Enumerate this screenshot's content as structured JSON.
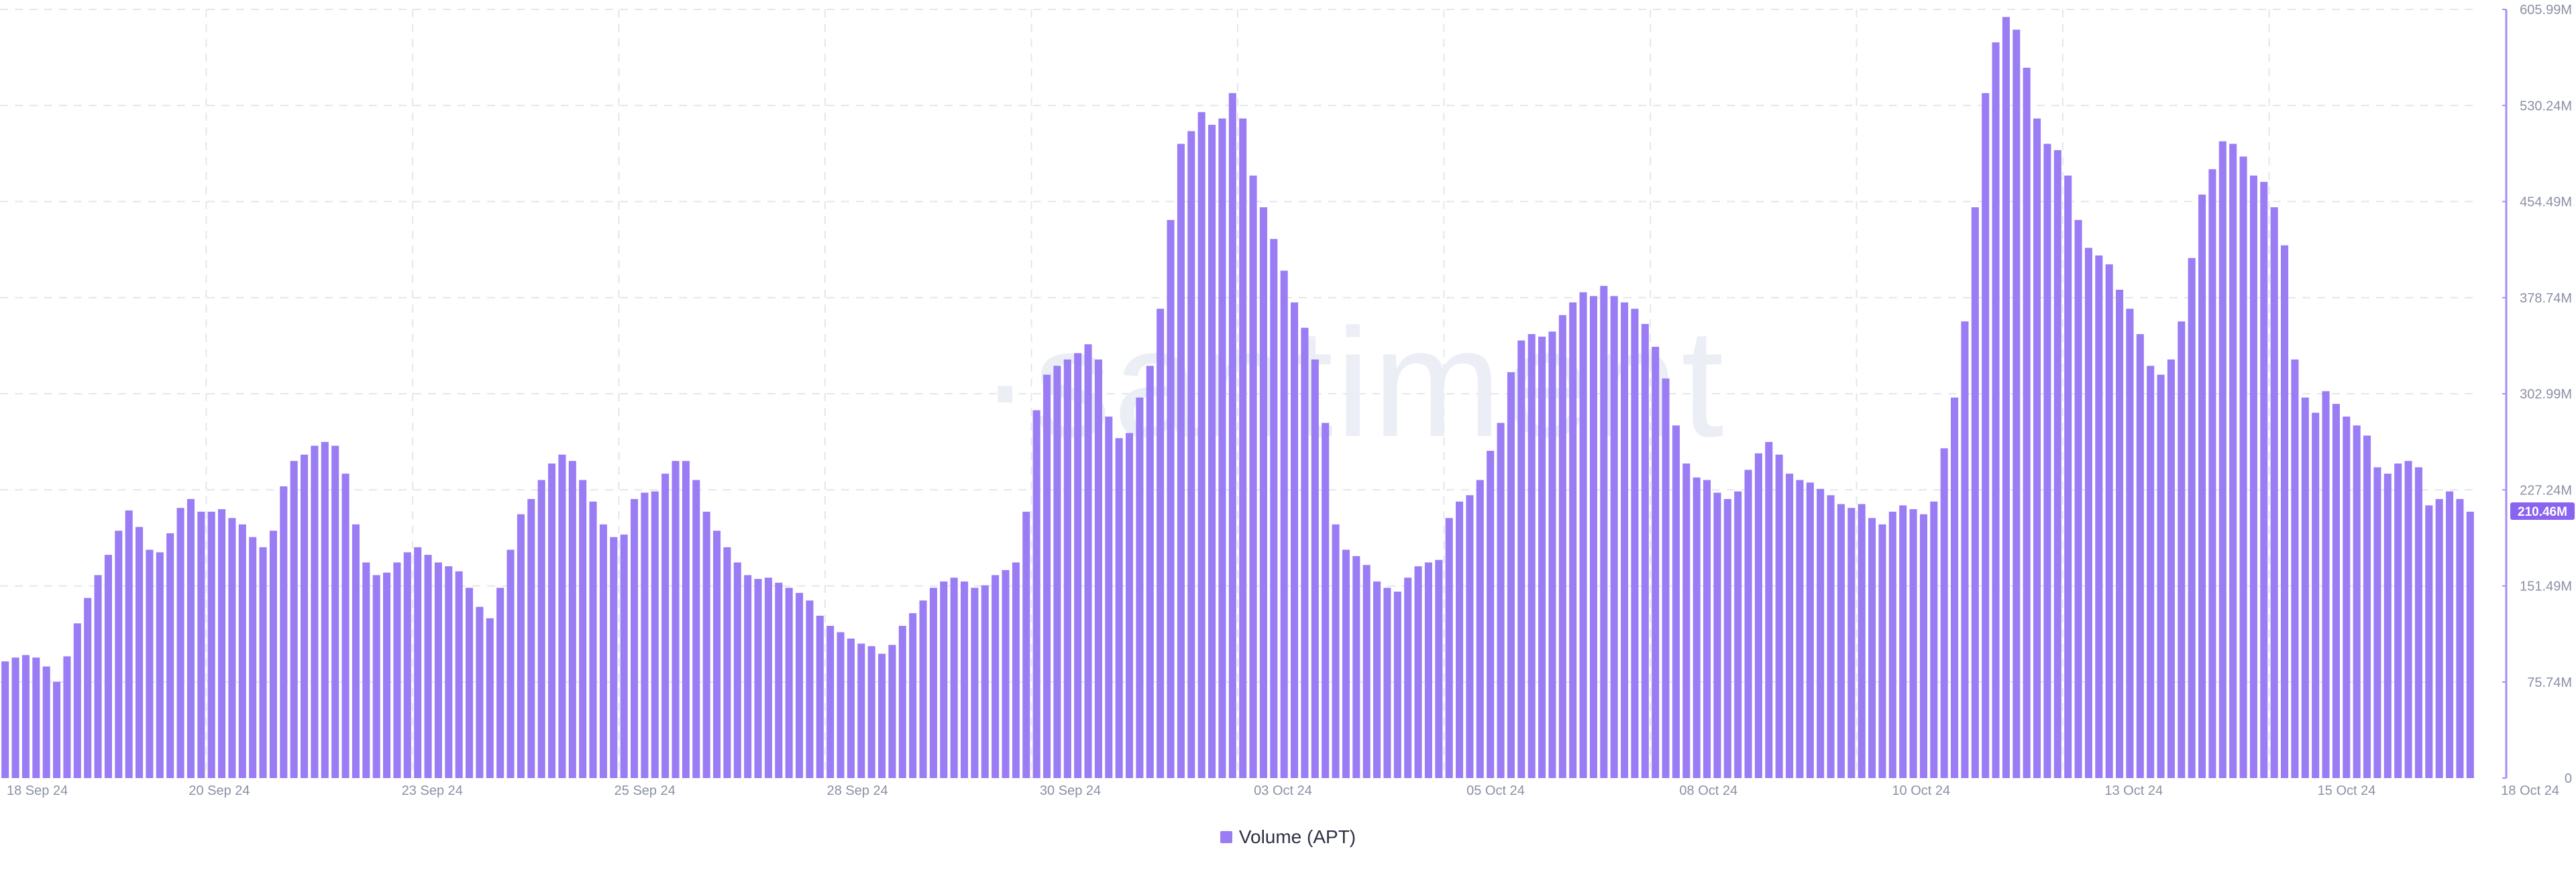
{
  "watermark": "·santiment",
  "legend": {
    "label": "Volume (APT)",
    "color": "#9a7cf4"
  },
  "colors": {
    "bar": "#9a7cf4",
    "bar_edge": "#8766ee",
    "axis": "#a88cf5",
    "grid": "#e4e6ee",
    "badge": "#8a63f0"
  },
  "chart_data": {
    "type": "bar",
    "series": [
      {
        "name": "Volume (APT)",
        "x_range": [
          "2024-09-18",
          "2024-10-18"
        ],
        "values": [
          92000000.0,
          95000000.0,
          97000000.0,
          95000000.0,
          88000000.0,
          76000000.0,
          96000000.0,
          122000000.0,
          142000000.0,
          160000000.0,
          176000000.0,
          195000000.0,
          211000000.0,
          198000000.0,
          180000000.0,
          178000000.0,
          193000000.0,
          213000000.0,
          220000000.0,
          210000000.0,
          210000000.0,
          212000000.0,
          205000000.0,
          200000000.0,
          190000000.0,
          182000000.0,
          195000000.0,
          230000000.0,
          250000000.0,
          255000000.0,
          262000000.0,
          265000000.0,
          262000000.0,
          240000000.0,
          200000000.0,
          170000000.0,
          160000000.0,
          162000000.0,
          170000000.0,
          178000000.0,
          182000000.0,
          176000000.0,
          170000000.0,
          167000000.0,
          163000000.0,
          150000000.0,
          135000000.0,
          126000000.0,
          150000000.0,
          180000000.0,
          208000000.0,
          220000000.0,
          235000000.0,
          248000000.0,
          255000000.0,
          250000000.0,
          235000000.0,
          218000000.0,
          200000000.0,
          190000000.0,
          192000000.0,
          220000000.0,
          225000000.0,
          226000000.0,
          240000000.0,
          250000000.0,
          250000000.0,
          235000000.0,
          210000000.0,
          195000000.0,
          182000000.0,
          170000000.0,
          160000000.0,
          157000000.0,
          158000000.0,
          154000000.0,
          150000000.0,
          146000000.0,
          140000000.0,
          128000000.0,
          120000000.0,
          115000000.0,
          110000000.0,
          106000000.0,
          104000000.0,
          98000000.0,
          105000000.0,
          120000000.0,
          130000000.0,
          140000000.0,
          150000000.0,
          155000000.0,
          158000000.0,
          155000000.0,
          150000000.0,
          152000000.0,
          160000000.0,
          164000000.0,
          170000000.0,
          210000000.0,
          290000000.0,
          318000000.0,
          325000000.0,
          330000000.0,
          335000000.0,
          342000000.0,
          330000000.0,
          285000000.0,
          268000000.0,
          272000000.0,
          300000000.0,
          325000000.0,
          370000000.0,
          440000000.0,
          500000000.0,
          510000000.0,
          525000000.0,
          515000000.0,
          520000000.0,
          540000000.0,
          520000000.0,
          475000000.0,
          450000000.0,
          425000000.0,
          400000000.0,
          375000000.0,
          355000000.0,
          330000000.0,
          280000000.0,
          200000000.0,
          180000000.0,
          175000000.0,
          168000000.0,
          155000000.0,
          150000000.0,
          147000000.0,
          158000000.0,
          167000000.0,
          170000000.0,
          172000000.0,
          205000000.0,
          218000000.0,
          223000000.0,
          235000000.0,
          258000000.0,
          280000000.0,
          320000000.0,
          345000000.0,
          350000000.0,
          348000000.0,
          352000000.0,
          365000000.0,
          375000000.0,
          383000000.0,
          380000000.0,
          388000000.0,
          380000000.0,
          375000000.0,
          370000000.0,
          358000000.0,
          340000000.0,
          315000000.0,
          278000000.0,
          248000000.0,
          237000000.0,
          235000000.0,
          225000000.0,
          220000000.0,
          226000000.0,
          243000000.0,
          256000000.0,
          265000000.0,
          255000000.0,
          240000000.0,
          235000000.0,
          233000000.0,
          228000000.0,
          223000000.0,
          216000000.0,
          213000000.0,
          216000000.0,
          205000000.0,
          200000000.0,
          210000000.0,
          215000000.0,
          212000000.0,
          208000000.0,
          218000000.0,
          260000000.0,
          300000000.0,
          360000000.0,
          450000000.0,
          540000000.0,
          580000000.0,
          600000000.0,
          590000000.0,
          560000000.0,
          520000000.0,
          500000000.0,
          495000000.0,
          475000000.0,
          440000000.0,
          418000000.0,
          412000000.0,
          405000000.0,
          385000000.0,
          370000000.0,
          350000000.0,
          325000000.0,
          318000000.0,
          330000000.0,
          360000000.0,
          410000000.0,
          460000000.0,
          480000000.0,
          502000000.0,
          500000000.0,
          490000000.0,
          475000000.0,
          470000000.0,
          450000000.0,
          420000000.0,
          330000000.0,
          300000000.0,
          288000000.0,
          305000000.0,
          295000000.0,
          285000000.0,
          278000000.0,
          270000000.0,
          245000000.0,
          240000000.0,
          248000000.0,
          250000000.0,
          245000000.0,
          215000000.0,
          220000000.0,
          226000000.0,
          220000000.0,
          210000000.0
        ]
      }
    ],
    "xlabel": "",
    "ylabel": "",
    "ylim": [
      0,
      605990000
    ],
    "x_ticks": [
      "18 Sep 24",
      "20 Sep 24",
      "23 Sep 24",
      "25 Sep 24",
      "28 Sep 24",
      "30 Sep 24",
      "03 Oct 24",
      "05 Oct 24",
      "08 Oct 24",
      "10 Oct 24",
      "13 Oct 24",
      "15 Oct 24",
      "18 Oct 24"
    ],
    "x_tick_positions": [
      0,
      0.0833,
      0.1667,
      0.25,
      0.3333,
      0.4167,
      0.5,
      0.5833,
      0.6667,
      0.75,
      0.8333,
      0.9167,
      1.0
    ],
    "y_ticks": [
      {
        "value": 0,
        "label": "0"
      },
      {
        "value": 75740000,
        "label": "75.74M"
      },
      {
        "value": 151490000,
        "label": "151.49M"
      },
      {
        "value": 227240000,
        "label": "227.24M"
      },
      {
        "value": 302990000,
        "label": "302.99M"
      },
      {
        "value": 378740000,
        "label": "378.74M"
      },
      {
        "value": 454490000,
        "label": "454.49M"
      },
      {
        "value": 530240000,
        "label": "530.24M"
      },
      {
        "value": 605990000,
        "label": "605.99M"
      }
    ],
    "last_value": {
      "value": 210460000,
      "label": "210.46M"
    },
    "grid": true,
    "legend_position": "bottom-center"
  }
}
